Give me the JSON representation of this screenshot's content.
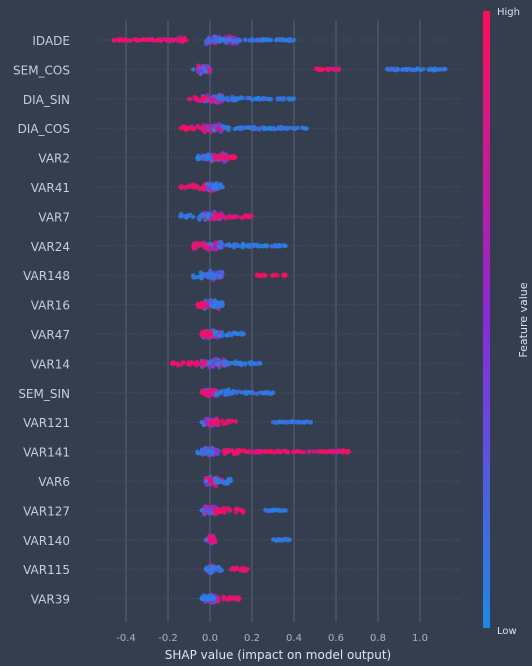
{
  "chart_data": {
    "type": "scatter",
    "subtype": "shap-beeswarm",
    "xlabel": "SHAP value (impact on model output)",
    "xlim": [
      -0.55,
      1.2
    ],
    "xticks": [
      -0.4,
      -0.2,
      0.0,
      0.2,
      0.4,
      0.6,
      0.8,
      1.0
    ],
    "xticklabels": [
      "-0.4",
      "-0.2",
      "0.0",
      "0.2",
      "0.4",
      "0.6",
      "0.8",
      "1.0"
    ],
    "grid": true,
    "colorbar": {
      "label": "Feature value",
      "high_label": "High",
      "low_label": "Low",
      "high_color": "#ff0d57",
      "mid_color": "#8a2bd6",
      "low_color": "#1e88e5"
    },
    "features": [
      {
        "name": "IDADE",
        "min": -0.46,
        "max": 0.4,
        "core": [
          -0.02,
          0.14
        ],
        "high_range": [
          -0.46,
          -0.1
        ],
        "low_range": [
          0.02,
          0.4
        ]
      },
      {
        "name": "SEM_COS",
        "min": -0.08,
        "max": 1.12,
        "core": [
          -0.06,
          0.0
        ],
        "high_range": [
          0.5,
          0.62
        ],
        "low_range": [
          0.84,
          1.12
        ]
      },
      {
        "name": "DIA_SIN",
        "min": -0.1,
        "max": 0.4,
        "core": [
          -0.04,
          0.06
        ],
        "high_range": [
          -0.1,
          -0.02
        ],
        "low_range": [
          0.05,
          0.4
        ]
      },
      {
        "name": "DIA_COS",
        "min": -0.14,
        "max": 0.46,
        "core": [
          -0.03,
          0.06
        ],
        "high_range": [
          -0.14,
          -0.02
        ],
        "low_range": [
          0.06,
          0.46
        ]
      },
      {
        "name": "VAR2",
        "min": -0.06,
        "max": 0.12,
        "core": [
          -0.03,
          0.08
        ],
        "high_range": [
          0.02,
          0.12
        ],
        "low_range": [
          -0.06,
          0.0
        ]
      },
      {
        "name": "VAR41",
        "min": -0.14,
        "max": 0.06,
        "core": [
          -0.03,
          0.04
        ],
        "high_range": [
          -0.14,
          -0.02
        ],
        "low_range": [
          0.0,
          0.06
        ]
      },
      {
        "name": "VAR7",
        "min": -0.14,
        "max": 0.2,
        "core": [
          -0.03,
          0.06
        ],
        "high_range": [
          0.02,
          0.2
        ],
        "low_range": [
          -0.14,
          0.0
        ]
      },
      {
        "name": "VAR24",
        "min": -0.08,
        "max": 0.36,
        "core": [
          -0.03,
          0.06
        ],
        "high_range": [
          -0.08,
          -0.02
        ],
        "low_range": [
          0.04,
          0.36
        ]
      },
      {
        "name": "VAR148",
        "min": -0.08,
        "max": 0.36,
        "core": [
          -0.03,
          0.06
        ],
        "high_range": [
          0.22,
          0.36
        ],
        "low_range": [
          -0.08,
          0.06
        ]
      },
      {
        "name": "VAR16",
        "min": -0.06,
        "max": 0.06,
        "core": [
          -0.04,
          0.05
        ],
        "high_range": [
          -0.06,
          0.0
        ],
        "low_range": [
          0.0,
          0.06
        ]
      },
      {
        "name": "VAR47",
        "min": -0.04,
        "max": 0.16,
        "core": [
          -0.03,
          0.05
        ],
        "high_range": [
          -0.04,
          0.02
        ],
        "low_range": [
          0.02,
          0.16
        ]
      },
      {
        "name": "VAR14",
        "min": -0.18,
        "max": 0.24,
        "core": [
          -0.04,
          0.08
        ],
        "high_range": [
          -0.18,
          -0.02
        ],
        "low_range": [
          0.02,
          0.24
        ]
      },
      {
        "name": "SEM_SIN",
        "min": -0.04,
        "max": 0.3,
        "core": [
          -0.03,
          0.04
        ],
        "high_range": [
          -0.04,
          0.02
        ],
        "low_range": [
          0.02,
          0.3
        ]
      },
      {
        "name": "VAR121",
        "min": -0.04,
        "max": 0.48,
        "core": [
          -0.03,
          0.04
        ],
        "high_range": [
          0.0,
          0.14
        ],
        "low_range": [
          0.3,
          0.48
        ]
      },
      {
        "name": "VAR141",
        "min": -0.06,
        "max": 0.66,
        "core": [
          -0.04,
          0.04
        ],
        "high_range": [
          0.06,
          0.66
        ],
        "low_range": [
          -0.06,
          0.02
        ]
      },
      {
        "name": "VAR6",
        "min": -0.02,
        "max": 0.1,
        "core": [
          -0.02,
          0.04
        ],
        "high_range": [
          0.0,
          0.06
        ],
        "low_range": [
          0.02,
          0.1
        ]
      },
      {
        "name": "VAR127",
        "min": -0.04,
        "max": 0.36,
        "core": [
          -0.03,
          0.04
        ],
        "high_range": [
          0.02,
          0.16
        ],
        "low_range": [
          0.26,
          0.36
        ]
      },
      {
        "name": "VAR140",
        "min": -0.02,
        "max": 0.38,
        "core": [
          -0.01,
          0.02
        ],
        "high_range": [
          -0.01,
          0.03
        ],
        "low_range": [
          0.28,
          0.38
        ]
      },
      {
        "name": "VAR115",
        "min": -0.02,
        "max": 0.18,
        "core": [
          -0.01,
          0.02
        ],
        "high_range": [
          0.1,
          0.18
        ],
        "low_range": [
          -0.02,
          0.06
        ]
      },
      {
        "name": "VAR39",
        "min": -0.04,
        "max": 0.14,
        "core": [
          -0.03,
          0.04
        ],
        "high_range": [
          0.06,
          0.14
        ],
        "low_range": [
          -0.04,
          0.02
        ]
      }
    ]
  }
}
